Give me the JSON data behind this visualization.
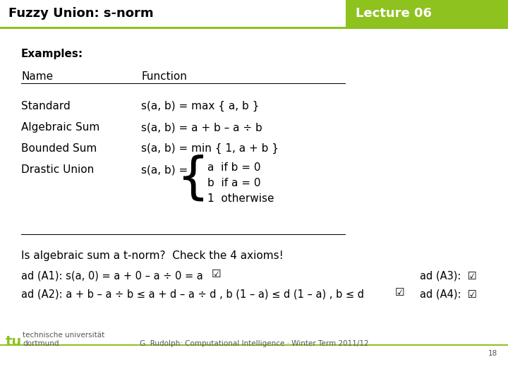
{
  "title_left": "Fuzzy Union: s-norm",
  "title_right": "Lecture 06",
  "header_bg": "#8dc21f",
  "header_text_color": "#ffffff",
  "title_text_color": "#000000",
  "bg_color": "#ffffff",
  "examples_label": "Examples:",
  "col1_header": "Name",
  "col2_header": "Function",
  "rows": [
    [
      "Standard",
      "s(a, b) = max { a, b }"
    ],
    [
      "Algebraic Sum",
      "s(a, b) = a + b – a ÷ b"
    ],
    [
      "Bounded Sum",
      "s(a, b) = min { 1, a + b }"
    ],
    [
      "Drastic Union",
      "s(a, b) ="
    ]
  ],
  "drastic_cases": [
    "a  if b = 0",
    "b  if a = 0",
    "1  otherwise"
  ],
  "bottom_text1": "Is algebraic sum a t-norm?  Check the 4 axioms!",
  "bottom_text2": "ad (A1): s(a, 0) = a + 0 – a ÷ 0 = a",
  "bottom_text3": "ad (A2): a + b – a ÷ b ≤ a + d – a ÷ d , b (1 – a) ≤ d (1 – a) , b ≤ d",
  "bottom_text_A3": "ad (A3):",
  "bottom_text_A4": "ad (A4):",
  "footer_left": "technische universität\ndortmund",
  "footer_right": "G. Rudolph: Computational Intelligence · Winter Term 2011/12\n18",
  "green_color": "#8dc21f",
  "dark_text": "#1a1a1a",
  "checkbox_char": "☑"
}
